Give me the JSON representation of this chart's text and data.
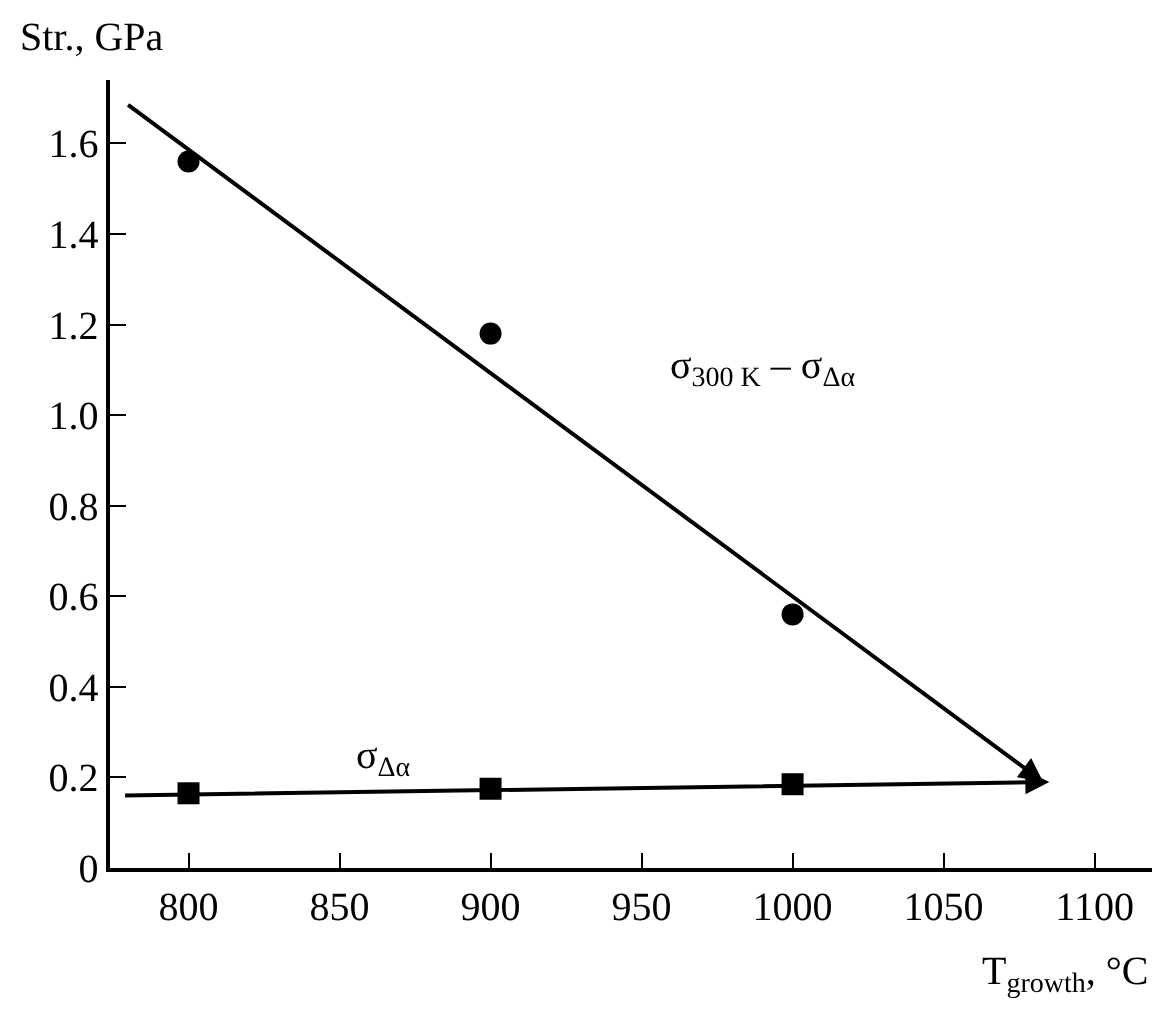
{
  "chart_data": {
    "type": "scatter",
    "xlabel": "T$_{growth}$, °C",
    "ylabel": "Str., GPa",
    "xlim": [
      774,
      1119
    ],
    "ylim": [
      0,
      1.74
    ],
    "xticks": [
      800,
      850,
      900,
      950,
      1000,
      1050,
      1100
    ],
    "yticks": [
      0,
      0.2,
      0.4,
      0.6,
      0.8,
      {
        "value": 1.0,
        "label": "1.0"
      },
      1.2,
      1.4,
      1.6
    ],
    "legend": false,
    "series": [
      {
        "marker": "circle",
        "color": "#000000",
        "x": [
          800,
          900,
          1000
        ],
        "values": [
          1.56,
          1.18,
          0.56
        ]
      },
      {
        "marker": "square",
        "color": "#000000",
        "x": [
          800,
          900,
          1000
        ],
        "values": [
          0.165,
          0.175,
          0.185
        ]
      }
    ],
    "annotations": [
      "σ$_{300 K}$ – σ$_{Δα}$",
      "σ$_{Δα}$"
    ]
  }
}
